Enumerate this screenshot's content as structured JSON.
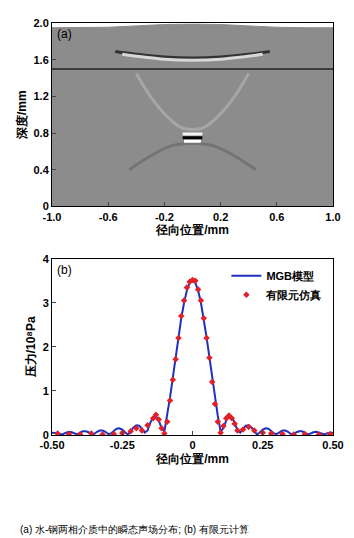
{
  "caption": "(a) 水-钢两相介质中的瞬态声场分布; (b) 有限元计算",
  "chart_data": [
    {
      "type": "field",
      "panel_label": "(a)",
      "x_label": "径向位置/mm",
      "y_label": "深度/mm",
      "xlim": [
        -1.0,
        1.0
      ],
      "ylim": [
        0,
        2.0
      ],
      "xticks": [
        {
          "value": -1.0,
          "label": "-1.0"
        },
        -0.6,
        -0.2,
        0.2,
        0.6,
        {
          "value": 1.0,
          "label": "1.0"
        }
      ],
      "yticks": [
        0,
        0.4,
        0.8,
        1.2,
        1.6,
        {
          "value": 2.0,
          "label": "2.0"
        }
      ],
      "grid": false,
      "surface": {
        "color": "#8c8c8c",
        "x": [
          -1.0,
          -0.8,
          -0.6,
          -0.4,
          -0.2,
          0.0,
          0.2,
          0.4,
          0.6,
          0.8,
          1.0
        ],
        "y": [
          1.95,
          1.95,
          1.955,
          1.97,
          1.985,
          1.99,
          1.985,
          1.97,
          1.955,
          1.95,
          1.95
        ]
      },
      "interface": {
        "color": "#222222",
        "x": [
          -1.0,
          1.0
        ],
        "y": [
          1.5,
          1.5
        ]
      },
      "wavefronts": [
        {
          "color": "#333333",
          "x": [
            -0.55,
            -0.4,
            -0.2,
            0.0,
            0.2,
            0.4,
            0.55
          ],
          "y": [
            1.69,
            1.66,
            1.63,
            1.62,
            1.63,
            1.66,
            1.69
          ]
        },
        {
          "color": "#d8d8d8",
          "x": [
            -0.5,
            -0.35,
            -0.2,
            0.0,
            0.2,
            0.35,
            0.5
          ],
          "y": [
            1.66,
            1.63,
            1.605,
            1.595,
            1.605,
            1.63,
            1.66
          ]
        },
        {
          "color": "#a6a6a6",
          "x": [
            -0.4,
            -0.3,
            -0.18,
            -0.08,
            0.0,
            0.08,
            0.18,
            0.3,
            0.4
          ],
          "y": [
            1.45,
            1.2,
            0.98,
            0.86,
            0.84,
            0.86,
            0.98,
            1.2,
            1.45
          ]
        },
        {
          "color": "#747474",
          "x": [
            -0.45,
            -0.3,
            -0.15,
            0.0,
            0.15,
            0.3,
            0.45
          ],
          "y": [
            0.4,
            0.55,
            0.66,
            0.69,
            0.66,
            0.55,
            0.4
          ]
        },
        {
          "color": "#f2f2f2",
          "x": [
            -0.07,
            0.07
          ],
          "y": [
            0.79,
            0.79
          ]
        },
        {
          "color": "#000000",
          "x": [
            -0.07,
            0.07
          ],
          "y": [
            0.75,
            0.75
          ]
        },
        {
          "color": "#ffffff",
          "x": [
            -0.06,
            0.06
          ],
          "y": [
            0.71,
            0.71
          ]
        }
      ]
    },
    {
      "type": "line",
      "panel_label": "(b)",
      "x_label": "径向位置/mm",
      "y_label": "压力/10⁸Pa",
      "xlim": [
        -0.5,
        0.5
      ],
      "ylim": [
        0,
        4
      ],
      "xticks": [
        {
          "value": -0.5,
          "label": "-0.50"
        },
        {
          "value": -0.25,
          "label": "-0.25"
        },
        0,
        {
          "value": 0.25,
          "label": "0.25"
        },
        {
          "value": 0.5,
          "label": "0.50"
        }
      ],
      "yticks": [
        0,
        1,
        2,
        3,
        4
      ],
      "grid": false,
      "legend": "upper right",
      "series": [
        {
          "name": "MGB模型",
          "type": "line",
          "color": "#1f2fbf",
          "line_style": "solid",
          "x": [
            -0.5,
            -0.49,
            -0.48,
            -0.47,
            -0.46,
            -0.45,
            -0.44,
            -0.43,
            -0.42,
            -0.41,
            -0.4,
            -0.39,
            -0.38,
            -0.37,
            -0.36,
            -0.35,
            -0.34,
            -0.33,
            -0.32,
            -0.31,
            -0.3,
            -0.29,
            -0.28,
            -0.27,
            -0.26,
            -0.25,
            -0.24,
            -0.23,
            -0.22,
            -0.21,
            -0.2,
            -0.19,
            -0.18,
            -0.17,
            -0.16,
            -0.15,
            -0.14,
            -0.13,
            -0.12,
            -0.11,
            -0.1,
            -0.09,
            -0.08,
            -0.07,
            -0.06,
            -0.05,
            -0.04,
            -0.03,
            -0.02,
            -0.01,
            0.0,
            0.01,
            0.02,
            0.03,
            0.04,
            0.05,
            0.06,
            0.07,
            0.08,
            0.09,
            0.1,
            0.11,
            0.12,
            0.13,
            0.14,
            0.15,
            0.16,
            0.17,
            0.18,
            0.19,
            0.2,
            0.21,
            0.22,
            0.23,
            0.24,
            0.25,
            0.26,
            0.27,
            0.28,
            0.29,
            0.3,
            0.31,
            0.32,
            0.33,
            0.34,
            0.35,
            0.36,
            0.37,
            0.38,
            0.39,
            0.4,
            0.41,
            0.42,
            0.43,
            0.44,
            0.45,
            0.46,
            0.47,
            0.48,
            0.49,
            0.5
          ],
          "values": [
            0.05,
            0.05,
            0.04,
            0.01,
            0.02,
            0.05,
            0.07,
            0.06,
            0.03,
            0.01,
            0.05,
            0.08,
            0.08,
            0.06,
            0.02,
            0.02,
            0.07,
            0.1,
            0.1,
            0.07,
            0.02,
            0.03,
            0.09,
            0.14,
            0.15,
            0.12,
            0.06,
            0.01,
            0.08,
            0.17,
            0.22,
            0.21,
            0.14,
            0.05,
            0.1,
            0.28,
            0.4,
            0.42,
            0.33,
            0.15,
            0.08,
            0.43,
            0.85,
            1.3,
            1.77,
            2.22,
            2.65,
            3.0,
            3.28,
            3.45,
            3.5,
            3.45,
            3.28,
            3.0,
            2.65,
            2.22,
            1.77,
            1.3,
            0.85,
            0.43,
            0.08,
            0.15,
            0.33,
            0.42,
            0.4,
            0.28,
            0.1,
            0.05,
            0.14,
            0.21,
            0.22,
            0.17,
            0.08,
            0.01,
            0.06,
            0.12,
            0.15,
            0.14,
            0.09,
            0.03,
            0.02,
            0.07,
            0.1,
            0.1,
            0.07,
            0.02,
            0.02,
            0.06,
            0.08,
            0.08,
            0.05,
            0.01,
            0.03,
            0.06,
            0.07,
            0.05,
            0.02,
            0.01,
            0.04,
            0.05,
            0.05
          ]
        },
        {
          "name": "有限元仿真",
          "type": "scatter",
          "color": "#e0202a",
          "marker": "diamond",
          "x": [
            -0.48,
            -0.44,
            -0.4,
            -0.36,
            -0.32,
            -0.28,
            -0.25,
            -0.22,
            -0.2,
            -0.18,
            -0.16,
            -0.14,
            -0.13,
            -0.12,
            -0.11,
            -0.1,
            -0.09,
            -0.08,
            -0.07,
            -0.06,
            -0.05,
            -0.04,
            -0.03,
            -0.02,
            -0.01,
            0.0,
            0.01,
            0.02,
            0.03,
            0.04,
            0.05,
            0.06,
            0.07,
            0.08,
            0.09,
            0.1,
            0.11,
            0.12,
            0.13,
            0.14,
            0.15,
            0.16,
            0.18,
            0.2,
            0.22,
            0.25,
            0.28,
            0.32,
            0.36,
            0.4,
            0.45,
            0.49
          ],
          "values": [
            0.03,
            0.02,
            0.01,
            0.03,
            0.01,
            0.02,
            0.04,
            0.08,
            0.15,
            0.1,
            0.22,
            0.38,
            0.46,
            0.35,
            0.15,
            0.03,
            0.3,
            0.78,
            1.25,
            1.72,
            2.2,
            2.7,
            3.05,
            3.35,
            3.48,
            3.52,
            3.5,
            3.3,
            3.05,
            2.65,
            2.2,
            1.75,
            1.2,
            0.7,
            0.3,
            0.05,
            0.2,
            0.38,
            0.44,
            0.38,
            0.25,
            0.1,
            0.12,
            0.18,
            0.1,
            0.05,
            0.03,
            0.02,
            0.01,
            0.02,
            0.01,
            0.02
          ]
        }
      ]
    }
  ]
}
